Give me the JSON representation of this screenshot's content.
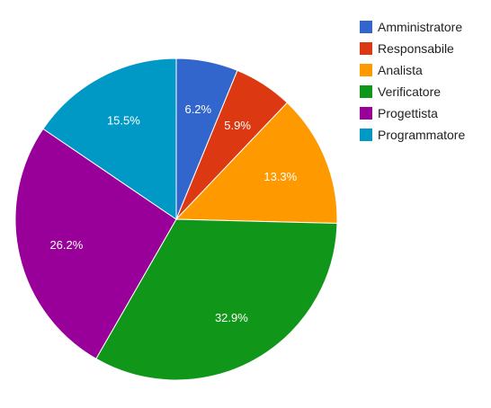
{
  "chart_data": {
    "type": "pie",
    "title": "",
    "legend_position": "right",
    "slices": [
      {
        "label": "Amministratore",
        "value": 6.2,
        "value_label": "6.2%",
        "color": "#3366cc"
      },
      {
        "label": "Responsabile",
        "value": 5.9,
        "value_label": "5.9%",
        "color": "#dc3912"
      },
      {
        "label": "Analista",
        "value": 13.3,
        "value_label": "13.3%",
        "color": "#ff9900"
      },
      {
        "label": "Verificatore",
        "value": 32.9,
        "value_label": "32.9%",
        "color": "#109618"
      },
      {
        "label": "Progettista",
        "value": 26.2,
        "value_label": "26.2%",
        "color": "#990099"
      },
      {
        "label": "Programmatore",
        "value": 15.5,
        "value_label": "15.5%",
        "color": "#0099c6"
      }
    ]
  }
}
